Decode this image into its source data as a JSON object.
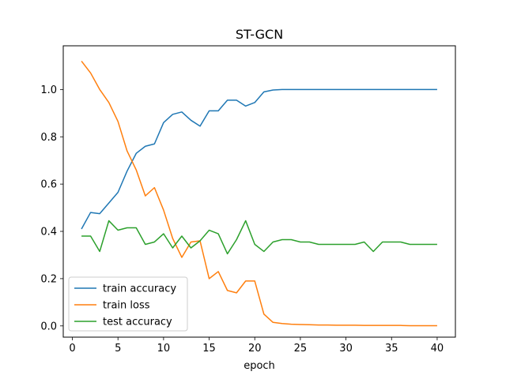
{
  "chart_data": {
    "type": "line",
    "title": "ST-GCN",
    "xlabel": "epoch",
    "ylabel": "",
    "xlim": [
      -1,
      42
    ],
    "ylim": [
      -0.0475,
      1.185
    ],
    "xticks": [
      0,
      5,
      10,
      15,
      20,
      25,
      30,
      35,
      40
    ],
    "yticks": [
      0.0,
      0.2,
      0.4,
      0.6,
      0.8,
      1.0
    ],
    "ytick_labels": [
      "0.0",
      "0.2",
      "0.4",
      "0.6",
      "0.8",
      "1.0"
    ],
    "grid": false,
    "legend_position": "lower-left",
    "x": [
      1,
      2,
      3,
      4,
      5,
      6,
      7,
      8,
      9,
      10,
      11,
      12,
      13,
      14,
      15,
      16,
      17,
      18,
      19,
      20,
      21,
      22,
      23,
      24,
      25,
      26,
      27,
      28,
      29,
      30,
      31,
      32,
      33,
      34,
      35,
      36,
      37,
      38,
      39,
      40
    ],
    "series": [
      {
        "name": "train accuracy",
        "color": "#1f77b4",
        "values": [
          0.41,
          0.48,
          0.475,
          0.52,
          0.565,
          0.655,
          0.73,
          0.76,
          0.77,
          0.86,
          0.895,
          0.905,
          0.87,
          0.845,
          0.91,
          0.91,
          0.955,
          0.955,
          0.93,
          0.945,
          0.99,
          0.998,
          1.0,
          1.0,
          1.0,
          1.0,
          1.0,
          1.0,
          1.0,
          1.0,
          1.0,
          1.0,
          1.0,
          1.0,
          1.0,
          1.0,
          1.0,
          1.0,
          1.0,
          1.0
        ]
      },
      {
        "name": "train loss",
        "color": "#ff7f0e",
        "values": [
          1.12,
          1.07,
          1.0,
          0.945,
          0.865,
          0.74,
          0.66,
          0.55,
          0.585,
          0.49,
          0.37,
          0.29,
          0.355,
          0.36,
          0.2,
          0.23,
          0.15,
          0.14,
          0.19,
          0.19,
          0.05,
          0.015,
          0.01,
          0.007,
          0.006,
          0.005,
          0.004,
          0.004,
          0.003,
          0.003,
          0.003,
          0.002,
          0.002,
          0.002,
          0.002,
          0.002,
          0.001,
          0.001,
          0.001,
          0.001
        ]
      },
      {
        "name": "test accuracy",
        "color": "#2ca02c",
        "values": [
          0.38,
          0.38,
          0.315,
          0.445,
          0.405,
          0.415,
          0.415,
          0.345,
          0.355,
          0.39,
          0.33,
          0.38,
          0.33,
          0.36,
          0.405,
          0.39,
          0.305,
          0.365,
          0.445,
          0.345,
          0.315,
          0.355,
          0.365,
          0.365,
          0.355,
          0.355,
          0.345,
          0.345,
          0.345,
          0.345,
          0.345,
          0.355,
          0.315,
          0.355,
          0.355,
          0.355,
          0.345,
          0.345,
          0.345,
          0.345
        ]
      }
    ]
  }
}
